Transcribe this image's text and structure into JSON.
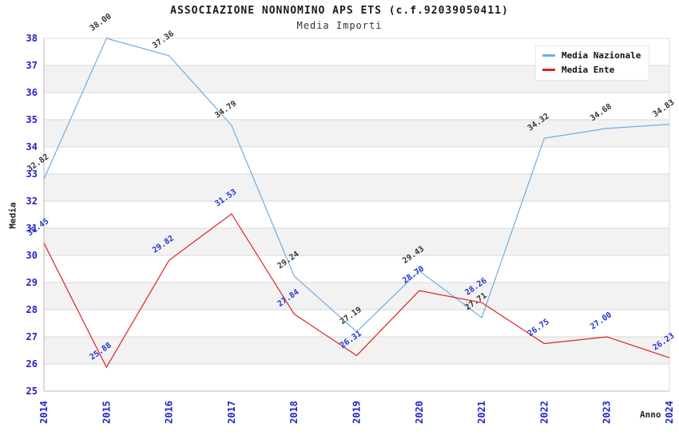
{
  "header": {
    "title": "ASSOCIAZIONE NONNOMINO APS ETS (c.f.92039050411)",
    "subtitle": "Media Importi"
  },
  "chart_data": {
    "type": "line",
    "x": [
      "2014",
      "2015",
      "2016",
      "2017",
      "2018",
      "2019",
      "2020",
      "2021",
      "2022",
      "2023",
      "2024"
    ],
    "xlabel": "Anno",
    "ylabel": "Media",
    "ylim": [
      25,
      38
    ],
    "y_tick_step": 1,
    "grid": "horizontal",
    "legend_position": "top-right",
    "series": [
      {
        "name": "Media Nazionale",
        "color": "#6eade6",
        "label_color": "#333333",
        "values": [
          32.82,
          38.0,
          37.36,
          34.79,
          29.24,
          27.19,
          29.43,
          27.71,
          34.32,
          34.68,
          34.83
        ]
      },
      {
        "name": "Media Ente",
        "color": "#dd2222",
        "label_color": "#2233cc",
        "values": [
          30.45,
          25.88,
          29.82,
          31.53,
          27.84,
          26.31,
          28.7,
          28.26,
          26.75,
          27.0,
          26.23
        ]
      }
    ],
    "colors": {
      "tick_label": "#2222cc",
      "band": "#f2f2f2",
      "gridline": "#d8d8d8",
      "axis_border": "#b8b8b8",
      "background": "#ffffff"
    }
  }
}
